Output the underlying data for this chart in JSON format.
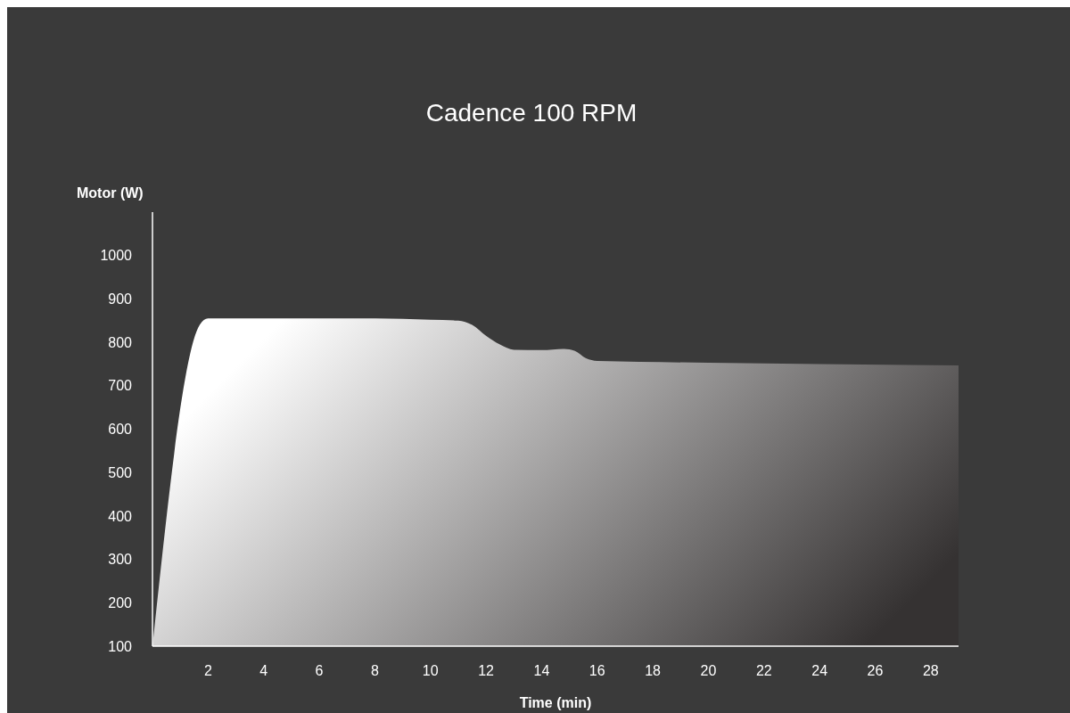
{
  "chart_data": {
    "type": "area",
    "title": "Cadence 100 RPM",
    "xlabel": "Time (min)",
    "ylabel": "Motor (W)",
    "x": [
      0,
      1.7,
      2,
      4,
      8,
      10,
      11,
      11.5,
      12,
      12.5,
      13,
      14,
      14.8,
      15.2,
      15.6,
      16,
      20,
      24,
      29
    ],
    "series": [
      {
        "color": "#ffffff",
        "values": [
          100,
          840,
          855,
          855,
          855,
          852,
          850,
          840,
          815,
          795,
          783,
          782,
          785,
          780,
          763,
          757,
          753,
          750,
          747
        ]
      }
    ],
    "xlim": [
      0,
      29
    ],
    "xticks": [
      2,
      4,
      6,
      8,
      10,
      12,
      14,
      16,
      18,
      20,
      22,
      24,
      26,
      28
    ],
    "ylim": [
      100,
      1100
    ],
    "yticks": [
      100,
      200,
      300,
      400,
      500,
      600,
      700,
      800,
      900,
      1000
    ],
    "grid": false
  }
}
